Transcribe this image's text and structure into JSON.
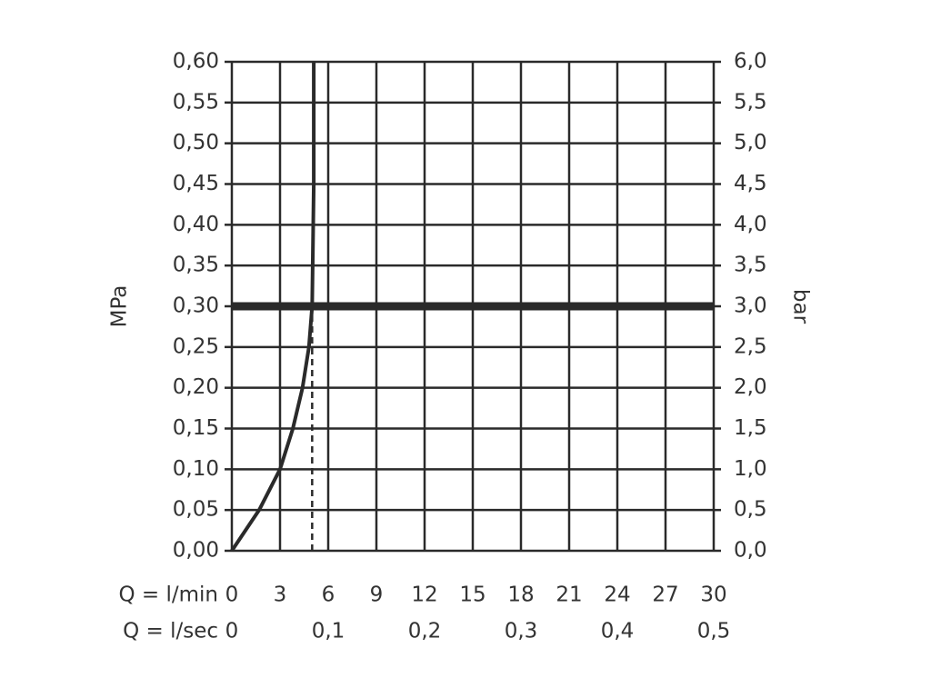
{
  "chart_data": {
    "type": "line",
    "xlabel": "Q = l/min",
    "x2label": "Q = l/sec",
    "ylabel": "MPa",
    "y2label": "bar",
    "xlim": [
      0,
      30
    ],
    "xticks": [
      0,
      3,
      6,
      9,
      12,
      15,
      18,
      21,
      24,
      27,
      30
    ],
    "x2lim": [
      0,
      0.5
    ],
    "x2ticks": [
      0,
      {
        "value": 0.1,
        "label": "0,1"
      },
      {
        "value": 0.2,
        "label": "0,2"
      },
      {
        "value": 0.3,
        "label": "0,3"
      },
      {
        "value": 0.4,
        "label": "0,4"
      },
      {
        "value": 0.5,
        "label": "0,5"
      }
    ],
    "ylim": [
      0,
      0.6
    ],
    "yticks": [
      {
        "value": 0,
        "label": "0,00"
      },
      {
        "value": 0.05,
        "label": "0,05"
      },
      {
        "value": 0.1,
        "label": "0,10"
      },
      {
        "value": 0.15,
        "label": "0,15"
      },
      {
        "value": 0.2,
        "label": "0,20"
      },
      {
        "value": 0.25,
        "label": "0,25"
      },
      {
        "value": 0.3,
        "label": "0,30"
      },
      {
        "value": 0.35,
        "label": "0,35"
      },
      {
        "value": 0.4,
        "label": "0,40"
      },
      {
        "value": 0.45,
        "label": "0,45"
      },
      {
        "value": 0.5,
        "label": "0,50"
      },
      {
        "value": 0.55,
        "label": "0,55"
      },
      {
        "value": 0.6,
        "label": "0,60"
      }
    ],
    "y2lim": [
      0,
      6
    ],
    "y2ticks": [
      {
        "value": 0,
        "label": "0,0"
      },
      {
        "value": 0.5,
        "label": "0,5"
      },
      {
        "value": 1,
        "label": "1,0"
      },
      {
        "value": 1.5,
        "label": "1,5"
      },
      {
        "value": 2,
        "label": "2,0"
      },
      {
        "value": 2.5,
        "label": "2,5"
      },
      {
        "value": 3,
        "label": "3,0"
      },
      {
        "value": 3.5,
        "label": "3,5"
      },
      {
        "value": 4,
        "label": "4,0"
      },
      {
        "value": 4.5,
        "label": "4,5"
      },
      {
        "value": 5,
        "label": "5,0"
      },
      {
        "value": 5.5,
        "label": "5,5"
      },
      {
        "value": 6,
        "label": "6,0"
      }
    ],
    "grid": true,
    "color": "#2a2a2a",
    "x": [
      0,
      1.7,
      3.0,
      3.8,
      4.4,
      4.8,
      5.0,
      5.1,
      5.1
    ],
    "values": [
      0,
      0.05,
      0.1,
      0.15,
      0.2,
      0.25,
      0.3,
      0.45,
      0.6
    ],
    "reference_pressure": 0.3,
    "operating_flow": 5
  }
}
